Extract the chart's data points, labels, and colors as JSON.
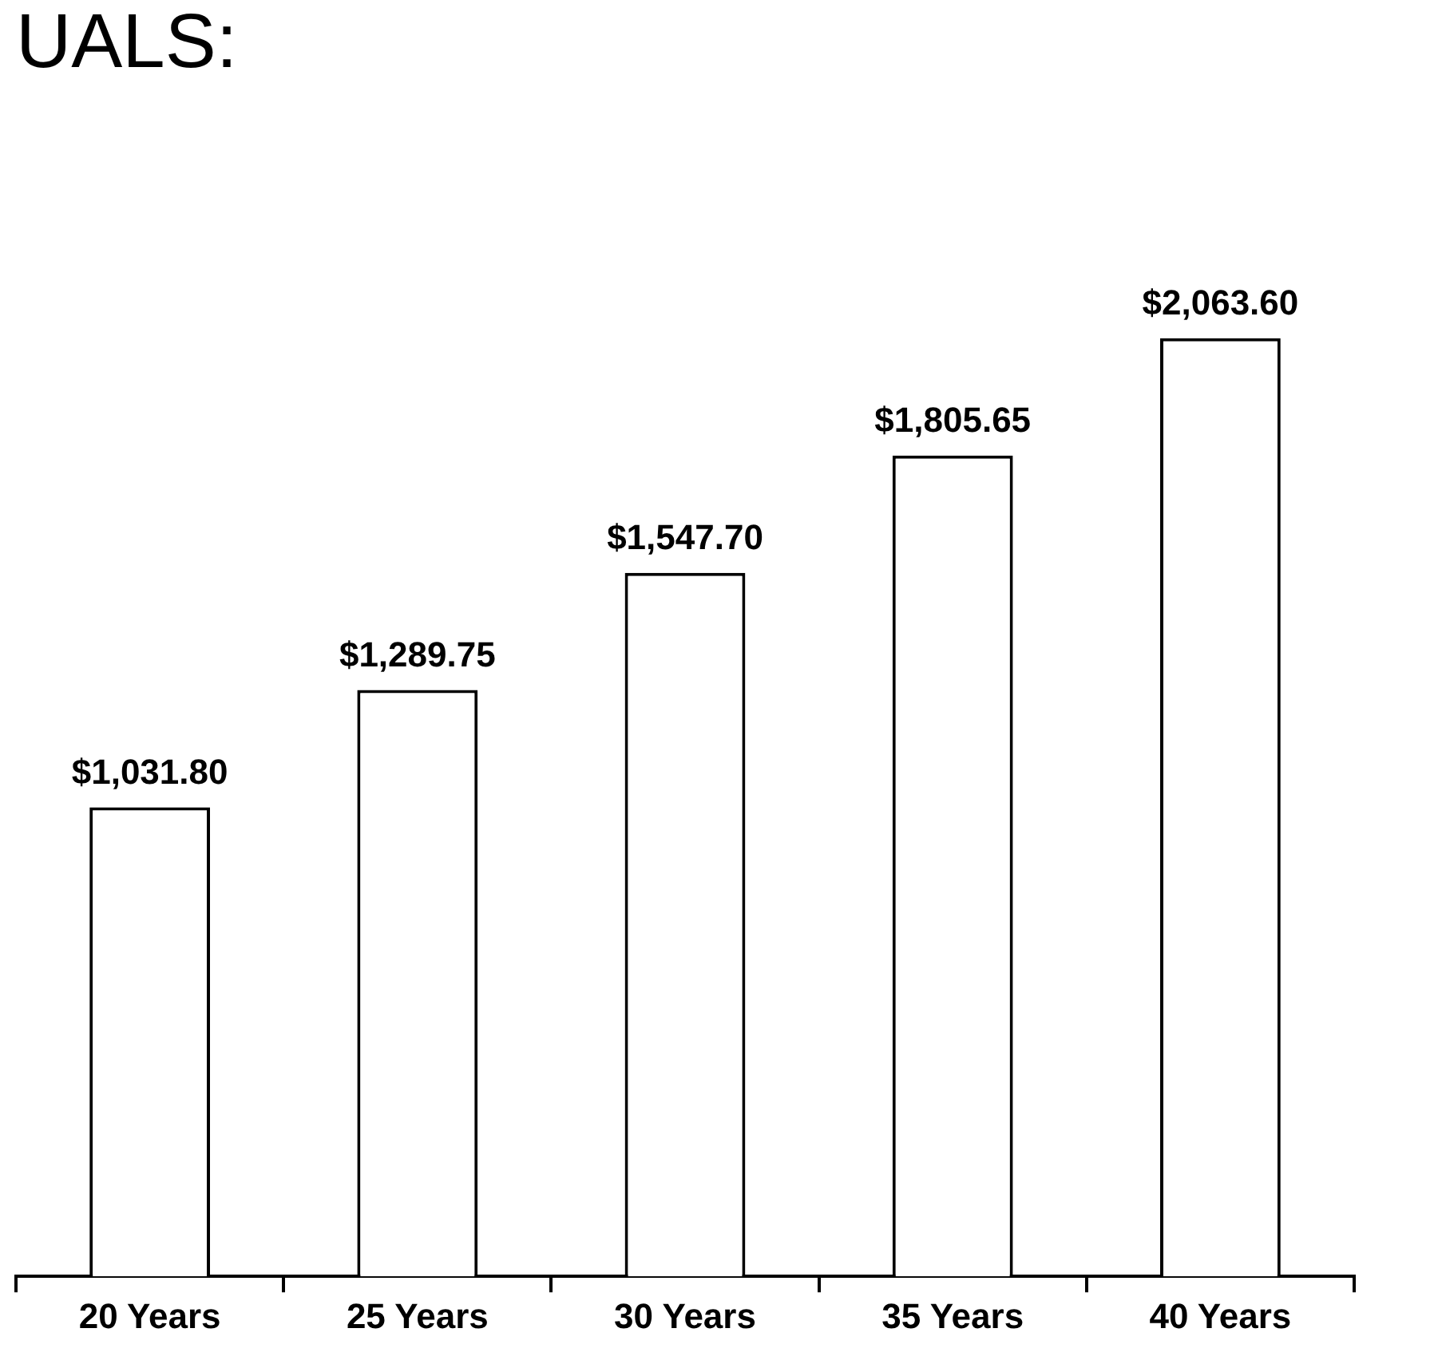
{
  "chart_data": {
    "type": "bar",
    "title": "UALS:",
    "categories": [
      "20 Years",
      "25 Years",
      "30 Years",
      "35 Years",
      "40 Years"
    ],
    "values": [
      1031.8,
      1289.75,
      1547.7,
      1805.65,
      2063.6
    ],
    "value_labels": [
      "$1,031.80",
      "$1,289.75",
      "$1,547.70",
      "$1,805.65",
      "$2,063.60"
    ],
    "color": "#ffffff",
    "grid": false,
    "legend": false
  }
}
